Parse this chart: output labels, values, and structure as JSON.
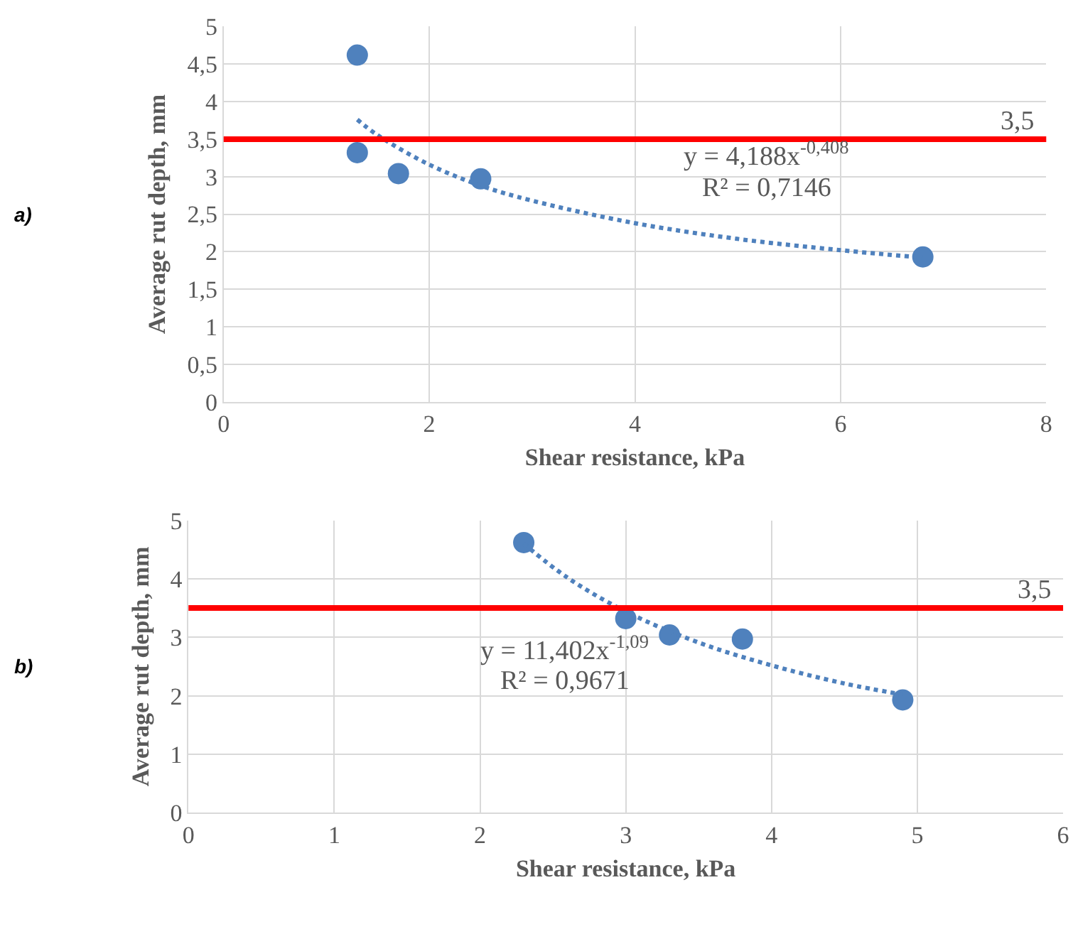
{
  "chart_data": [
    {
      "type": "scatter",
      "xlabel": "Shear resistance, kPa",
      "ylabel": "Average rut depth, mm",
      "annotations": [
        "a)",
        "y = 4,188x$^{-0,408}$",
        "R² = 0,7146"
      ],
      "series": [
        {
          "color": "#4f81bd",
          "marker": "circle",
          "x": [
            1.3,
            1.3,
            1.7,
            2.5,
            6.8
          ],
          "values": [
            4.62,
            3.32,
            3.04,
            2.97,
            1.93
          ]
        },
        {
          "type": "line",
          "color": "#4f81bd",
          "line_style": "dotted",
          "marker": "none",
          "x": [
            1.3,
            1.5,
            2,
            2.5,
            3,
            4,
            5,
            6,
            6.8
          ],
          "values": [
            3.76,
            3.55,
            3.16,
            2.88,
            2.68,
            2.38,
            2.17,
            2.02,
            1.92
          ]
        }
      ],
      "xlim": [
        0,
        8
      ],
      "xticks": [
        0,
        2,
        4,
        6,
        8
      ],
      "ylim": [
        0,
        5
      ],
      "yticks": [
        0,
        {
          "value": 0.5,
          "label": "0,5"
        },
        1,
        {
          "value": 1.5,
          "label": "1,5"
        },
        2,
        {
          "value": 2.5,
          "label": "2,5"
        },
        3,
        {
          "value": 3.5,
          "label": "3,5"
        },
        4,
        {
          "value": 4.5,
          "label": "4,5"
        },
        5
      ],
      "ref_lines": [
        {
          "axis": "y",
          "value": 3.5,
          "label": "3,5",
          "color": "#ff0000"
        }
      ],
      "grid": true
    },
    {
      "type": "scatter",
      "xlabel": "Shear resistance, kPa",
      "ylabel": "Average rut depth, mm",
      "annotations": [
        "b)",
        "y = 11,402x$^{-1,09}$",
        "R² = 0,9671"
      ],
      "series": [
        {
          "color": "#4f81bd",
          "marker": "circle",
          "x": [
            2.3,
            3.0,
            3.3,
            3.8,
            4.9
          ],
          "values": [
            4.62,
            3.32,
            3.04,
            2.97,
            1.93
          ]
        },
        {
          "type": "line",
          "color": "#4f81bd",
          "line_style": "dotted",
          "marker": "none",
          "x": [
            2.3,
            2.6,
            3,
            3.5,
            4,
            4.5,
            4.9
          ],
          "values": [
            4.6,
            4.02,
            3.44,
            2.91,
            2.52,
            2.21,
            2.02
          ]
        }
      ],
      "xlim": [
        0,
        6
      ],
      "xticks": [
        0,
        1,
        2,
        3,
        4,
        5,
        6
      ],
      "ylim": [
        0,
        5
      ],
      "yticks": [
        0,
        1,
        2,
        3,
        4,
        5
      ],
      "ref_lines": [
        {
          "axis": "y",
          "value": 3.5,
          "label": "3,5",
          "color": "#ff0000"
        }
      ],
      "grid": true
    }
  ]
}
